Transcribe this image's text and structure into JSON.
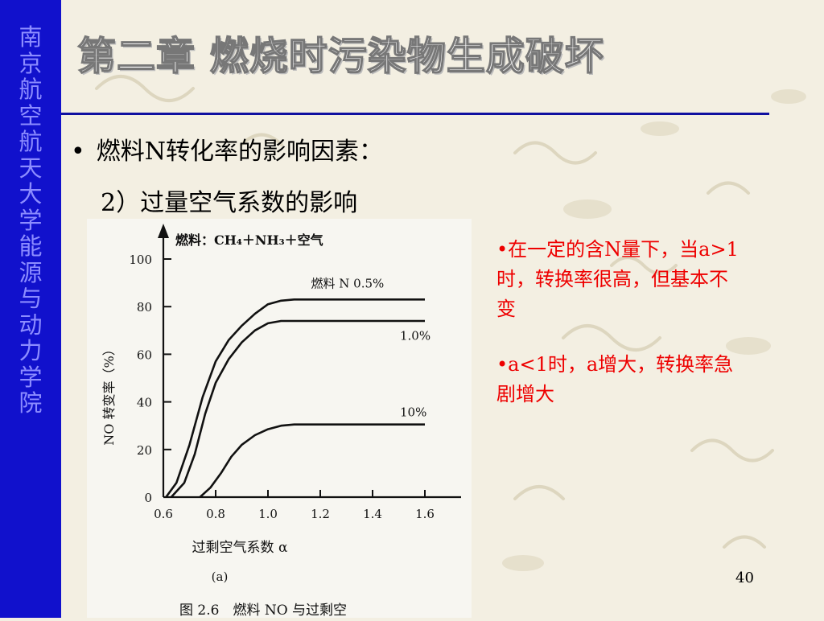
{
  "sidebar": {
    "chars": [
      "南",
      "京",
      "航",
      "空",
      "航",
      "天",
      "大",
      "学",
      "能",
      "源",
      "与",
      "动",
      "力",
      "学",
      "院"
    ]
  },
  "slide": {
    "title": "第二章 燃烧时污染物生成破坏",
    "bullet_symbol": "•",
    "bullet": "燃料N转化率的影响因素：",
    "subheading": "2）过量空气系数的影响"
  },
  "notes": [
    "•在一定的含N量下，当a>1时，转换率很高，但基本不变",
    "•a<1时，a增大，转换率急剧增大"
  ],
  "page_number": "40",
  "colors": {
    "sidebar": "#1111cc",
    "sidebar_text": "#8c8cff",
    "rule": "#1010a0",
    "note_text": "#ee0000",
    "background": "#f3efe2"
  },
  "chart_data": {
    "type": "line",
    "fuel_label": "燃料：CH₄＋NH₃＋空气",
    "xlabel": "过剩空气系数 α",
    "ylabel": "NO 转变率（%）",
    "panel_label": "(a)",
    "caption": "图 2.6　燃料 NO 与过剩空",
    "xlim": [
      0.6,
      1.6
    ],
    "ylim": [
      0,
      100
    ],
    "x_ticks": [
      0.6,
      0.8,
      1.0,
      1.2,
      1.4,
      1.6
    ],
    "x_tick_labels": [
      "0.6",
      "0.8",
      "1.0",
      "1.2",
      "1.4",
      "1.6"
    ],
    "y_ticks": [
      0,
      20,
      40,
      60,
      80,
      100
    ],
    "y_tick_labels": [
      "0",
      "20",
      "40",
      "60",
      "80",
      "100"
    ],
    "grid": false,
    "series": [
      {
        "name": "燃料 N 0.5%",
        "x": [
          0.61,
          0.65,
          0.7,
          0.75,
          0.8,
          0.85,
          0.9,
          0.95,
          1.0,
          1.05,
          1.1,
          1.2,
          1.4,
          1.6
        ],
        "y": [
          0,
          6,
          22,
          42,
          57,
          66,
          72,
          77,
          81,
          82.5,
          83,
          83,
          83,
          83
        ]
      },
      {
        "name": "1.0%",
        "x": [
          0.63,
          0.68,
          0.72,
          0.76,
          0.8,
          0.85,
          0.9,
          0.95,
          1.0,
          1.05,
          1.1,
          1.2,
          1.4,
          1.6
        ],
        "y": [
          0,
          6,
          18,
          35,
          48,
          58,
          65,
          70,
          73,
          74,
          74,
          74,
          74,
          74
        ]
      },
      {
        "name": "10%",
        "x": [
          0.74,
          0.78,
          0.82,
          0.86,
          0.9,
          0.95,
          1.0,
          1.05,
          1.1,
          1.2,
          1.4,
          1.6
        ],
        "y": [
          0,
          4,
          10,
          17,
          22,
          26,
          28.5,
          30,
          30.5,
          30.5,
          30.5,
          30.5
        ]
      }
    ]
  }
}
